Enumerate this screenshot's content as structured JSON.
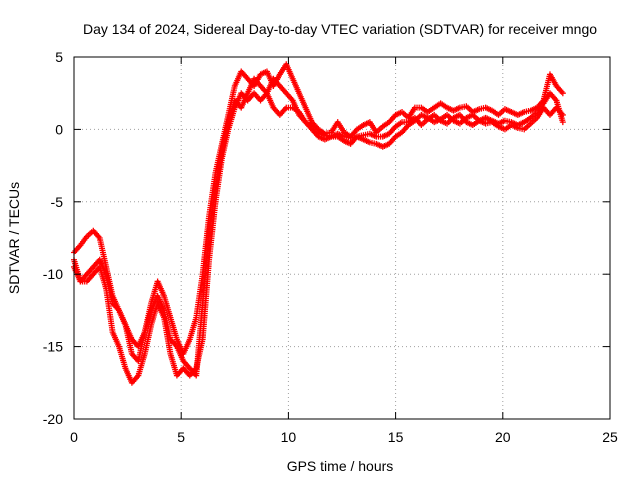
{
  "chart_data": {
    "type": "scatter",
    "title": "Day 134 of 2024, Sidereal Day-to-day VTEC variation (SDTVAR) for receiver mngo",
    "xlabel": "GPS time / hours",
    "ylabel": "SDTVAR / TECUs",
    "xlim": [
      0,
      25
    ],
    "ylim": [
      -20,
      5
    ],
    "x_ticks": [
      0,
      5,
      10,
      15,
      20,
      25
    ],
    "y_ticks": [
      -20,
      -15,
      -10,
      -5,
      0,
      5
    ],
    "grid": true,
    "marker": "plus",
    "color": "#ff0000",
    "series": [
      {
        "points": [
          [
            0.0,
            -8.5
          ],
          [
            0.3,
            -8.0
          ],
          [
            0.6,
            -7.4
          ],
          [
            0.9,
            -7.0
          ],
          [
            1.2,
            -7.5
          ],
          [
            1.5,
            -9.5
          ],
          [
            1.8,
            -11.5
          ],
          [
            2.1,
            -12.5
          ],
          [
            2.4,
            -13.5
          ],
          [
            2.7,
            -15.5
          ],
          [
            3.0,
            -16.0
          ],
          [
            3.3,
            -14.0
          ],
          [
            3.6,
            -12.0
          ],
          [
            3.9,
            -10.5
          ],
          [
            4.2,
            -11.5
          ],
          [
            4.5,
            -13.0
          ],
          [
            4.8,
            -14.5
          ],
          [
            5.1,
            -15.5
          ],
          [
            5.4,
            -14.5
          ],
          [
            5.7,
            -13.0
          ],
          [
            6.0,
            -10.0
          ],
          [
            6.3,
            -6.0
          ],
          [
            6.6,
            -3.0
          ],
          [
            6.9,
            -1.0
          ],
          [
            7.2,
            1.0
          ],
          [
            7.5,
            3.0
          ],
          [
            7.8,
            4.0
          ],
          [
            8.1,
            3.5
          ],
          [
            8.4,
            3.0
          ],
          [
            8.7,
            3.8
          ],
          [
            9.0,
            4.0
          ],
          [
            9.3,
            3.0
          ],
          [
            9.6,
            3.8
          ],
          [
            9.9,
            4.5
          ],
          [
            10.2,
            3.5
          ],
          [
            10.5,
            2.5
          ],
          [
            10.8,
            1.5
          ],
          [
            11.1,
            0.5
          ],
          [
            11.4,
            0.0
          ],
          [
            11.7,
            -0.3
          ],
          [
            12.0,
            -0.2
          ],
          [
            12.3,
            0.5
          ],
          [
            12.6,
            -0.2
          ],
          [
            12.9,
            -0.5
          ],
          [
            13.2,
            0.0
          ],
          [
            13.5,
            0.3
          ],
          [
            13.8,
            0.5
          ],
          [
            14.1,
            -0.2
          ],
          [
            14.4,
            0.2
          ],
          [
            14.7,
            0.5
          ],
          [
            15.0,
            1.0
          ],
          [
            15.3,
            1.2
          ],
          [
            15.6,
            0.8
          ],
          [
            15.9,
            1.5
          ],
          [
            16.2,
            1.5
          ],
          [
            16.5,
            1.2
          ],
          [
            16.8,
            1.5
          ],
          [
            17.1,
            1.8
          ],
          [
            17.4,
            1.5
          ],
          [
            17.7,
            1.3
          ],
          [
            18.0,
            1.5
          ],
          [
            18.3,
            1.6
          ],
          [
            18.6,
            1.2
          ],
          [
            18.9,
            1.4
          ],
          [
            19.2,
            1.5
          ],
          [
            19.5,
            1.3
          ],
          [
            19.8,
            1.0
          ],
          [
            20.1,
            1.4
          ],
          [
            20.4,
            1.2
          ],
          [
            20.7,
            1.0
          ],
          [
            21.0,
            1.2
          ],
          [
            21.3,
            1.3
          ],
          [
            21.6,
            1.5
          ],
          [
            21.9,
            2.0
          ],
          [
            22.2,
            3.8
          ],
          [
            22.5,
            3.0
          ],
          [
            22.8,
            2.5
          ]
        ]
      },
      {
        "points": [
          [
            0.0,
            -9.5
          ],
          [
            0.3,
            -10.5
          ],
          [
            0.6,
            -10.5
          ],
          [
            0.9,
            -10.0
          ],
          [
            1.2,
            -9.5
          ],
          [
            1.5,
            -11.0
          ],
          [
            1.8,
            -14.0
          ],
          [
            2.1,
            -15.0
          ],
          [
            2.4,
            -16.5
          ],
          [
            2.7,
            -17.5
          ],
          [
            3.0,
            -17.0
          ],
          [
            3.3,
            -15.5
          ],
          [
            3.6,
            -13.5
          ],
          [
            3.9,
            -12.0
          ],
          [
            4.2,
            -13.0
          ],
          [
            4.5,
            -15.5
          ],
          [
            4.8,
            -17.0
          ],
          [
            5.1,
            -16.5
          ],
          [
            5.4,
            -17.0
          ],
          [
            5.7,
            -16.5
          ],
          [
            6.0,
            -14.5
          ],
          [
            6.3,
            -9.0
          ],
          [
            6.6,
            -5.0
          ],
          [
            6.9,
            -2.0
          ],
          [
            7.2,
            0.0
          ],
          [
            7.5,
            1.5
          ],
          [
            7.8,
            2.5
          ],
          [
            8.1,
            2.0
          ],
          [
            8.4,
            2.5
          ],
          [
            8.7,
            2.0
          ],
          [
            9.0,
            2.5
          ],
          [
            9.3,
            1.5
          ],
          [
            9.6,
            1.0
          ],
          [
            9.9,
            1.5
          ],
          [
            10.2,
            1.5
          ],
          [
            10.5,
            1.2
          ],
          [
            10.8,
            0.5
          ],
          [
            11.1,
            0.0
          ],
          [
            11.4,
            -0.5
          ],
          [
            11.7,
            -0.7
          ],
          [
            12.0,
            -0.5
          ],
          [
            12.3,
            -0.5
          ],
          [
            12.6,
            -0.8
          ],
          [
            12.9,
            -1.0
          ],
          [
            13.2,
            -0.5
          ],
          [
            13.5,
            -0.7
          ],
          [
            13.8,
            -0.9
          ],
          [
            14.1,
            -1.0
          ],
          [
            14.4,
            -1.2
          ],
          [
            14.7,
            -1.0
          ],
          [
            15.0,
            -0.5
          ],
          [
            15.3,
            -0.2
          ],
          [
            15.6,
            0.3
          ],
          [
            15.9,
            0.6
          ],
          [
            16.2,
            1.0
          ],
          [
            16.5,
            0.8
          ],
          [
            16.8,
            0.5
          ],
          [
            17.1,
            0.7
          ],
          [
            17.4,
            1.0
          ],
          [
            17.7,
            0.6
          ],
          [
            18.0,
            0.4
          ],
          [
            18.3,
            0.8
          ],
          [
            18.6,
            1.0
          ],
          [
            18.9,
            0.6
          ],
          [
            19.2,
            0.4
          ],
          [
            19.5,
            0.5
          ],
          [
            19.8,
            0.2
          ],
          [
            20.1,
            0.0
          ],
          [
            20.4,
            0.3
          ],
          [
            20.7,
            0.1
          ],
          [
            21.0,
            0.0
          ],
          [
            21.3,
            0.4
          ],
          [
            21.6,
            0.8
          ],
          [
            21.9,
            1.5
          ],
          [
            22.2,
            1.0
          ],
          [
            22.5,
            1.5
          ],
          [
            22.8,
            1.0
          ]
        ]
      },
      {
        "points": [
          [
            0.0,
            -9.0
          ],
          [
            0.3,
            -10.5
          ],
          [
            0.6,
            -10.0
          ],
          [
            0.9,
            -9.5
          ],
          [
            1.2,
            -9.0
          ],
          [
            1.5,
            -10.0
          ],
          [
            1.8,
            -12.0
          ],
          [
            2.1,
            -12.5
          ],
          [
            2.4,
            -13.5
          ],
          [
            2.7,
            -14.5
          ],
          [
            3.0,
            -15.0
          ],
          [
            3.3,
            -14.0
          ],
          [
            3.6,
            -12.5
          ],
          [
            3.9,
            -11.5
          ],
          [
            4.2,
            -12.5
          ],
          [
            4.5,
            -14.5
          ],
          [
            4.8,
            -15.0
          ],
          [
            5.1,
            -16.0
          ],
          [
            5.4,
            -16.5
          ],
          [
            5.7,
            -17.0
          ],
          [
            6.0,
            -12.0
          ],
          [
            6.3,
            -7.0
          ],
          [
            6.6,
            -4.0
          ],
          [
            6.9,
            -1.5
          ],
          [
            7.2,
            0.5
          ],
          [
            7.5,
            2.0
          ],
          [
            7.8,
            1.5
          ],
          [
            8.1,
            2.5
          ],
          [
            8.4,
            3.5
          ],
          [
            8.7,
            3.0
          ],
          [
            9.0,
            2.5
          ],
          [
            9.3,
            3.5
          ],
          [
            9.6,
            3.0
          ],
          [
            9.9,
            2.5
          ],
          [
            10.2,
            2.0
          ],
          [
            10.5,
            1.0
          ],
          [
            10.8,
            0.5
          ],
          [
            11.1,
            0.2
          ],
          [
            11.4,
            -0.2
          ],
          [
            11.7,
            -0.4
          ],
          [
            12.0,
            -0.5
          ],
          [
            12.3,
            -0.3
          ],
          [
            12.6,
            -0.5
          ],
          [
            12.9,
            -0.6
          ],
          [
            13.2,
            -0.5
          ],
          [
            13.5,
            -0.4
          ],
          [
            13.8,
            -0.3
          ],
          [
            14.1,
            -0.5
          ],
          [
            14.4,
            -0.5
          ],
          [
            14.7,
            -0.3
          ],
          [
            15.0,
            0.2
          ],
          [
            15.3,
            0.5
          ],
          [
            15.6,
            0.5
          ],
          [
            15.9,
            0.8
          ],
          [
            16.2,
            0.3
          ],
          [
            16.5,
            0.7
          ],
          [
            16.8,
            1.0
          ],
          [
            17.1,
            0.6
          ],
          [
            17.4,
            0.4
          ],
          [
            17.7,
            0.8
          ],
          [
            18.0,
            1.0
          ],
          [
            18.3,
            0.5
          ],
          [
            18.6,
            0.3
          ],
          [
            18.9,
            0.6
          ],
          [
            19.2,
            0.8
          ],
          [
            19.5,
            0.6
          ],
          [
            19.8,
            0.4
          ],
          [
            20.1,
            0.6
          ],
          [
            20.4,
            0.5
          ],
          [
            20.7,
            0.3
          ],
          [
            21.0,
            0.5
          ],
          [
            21.3,
            0.8
          ],
          [
            21.6,
            1.2
          ],
          [
            21.9,
            1.8
          ],
          [
            22.2,
            2.5
          ],
          [
            22.5,
            2.0
          ],
          [
            22.8,
            0.5
          ]
        ]
      }
    ]
  }
}
